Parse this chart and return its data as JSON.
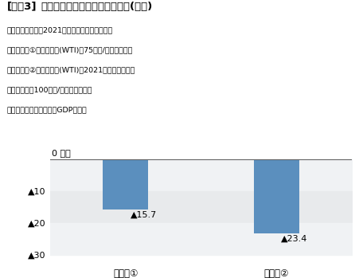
{
  "title_bracket": "[図表3]",
  "title_main": "原油価格の想定別・所得流出額(試算)",
  "note_lines": [
    "注：所得流出額は2021年度の交易利得の減少額",
    "　　ケース①：原油価格(WTI)が75ドル/バレルで推移",
    "　　ケース②：原油価格(WTI)が2021年度末にかけて",
    "　　　　　　100ドル/バレルまで上昇",
    "資料：内閣府「四半期別GDP速報」"
  ],
  "categories": [
    "ケース①",
    "ケース②"
  ],
  "values": [
    -15.7,
    -23.4
  ],
  "bar_color": "#5b8fbe",
  "yticks": [
    0,
    -10,
    -20,
    -30
  ],
  "ylim": [
    -33,
    2.0
  ],
  "bar_labels": [
    "▲15.7",
    "▲23.4"
  ],
  "bg_light": "#e8eaec",
  "bg_white": "#f0f2f4",
  "figsize": [
    4.51,
    3.49
  ],
  "dpi": 100
}
